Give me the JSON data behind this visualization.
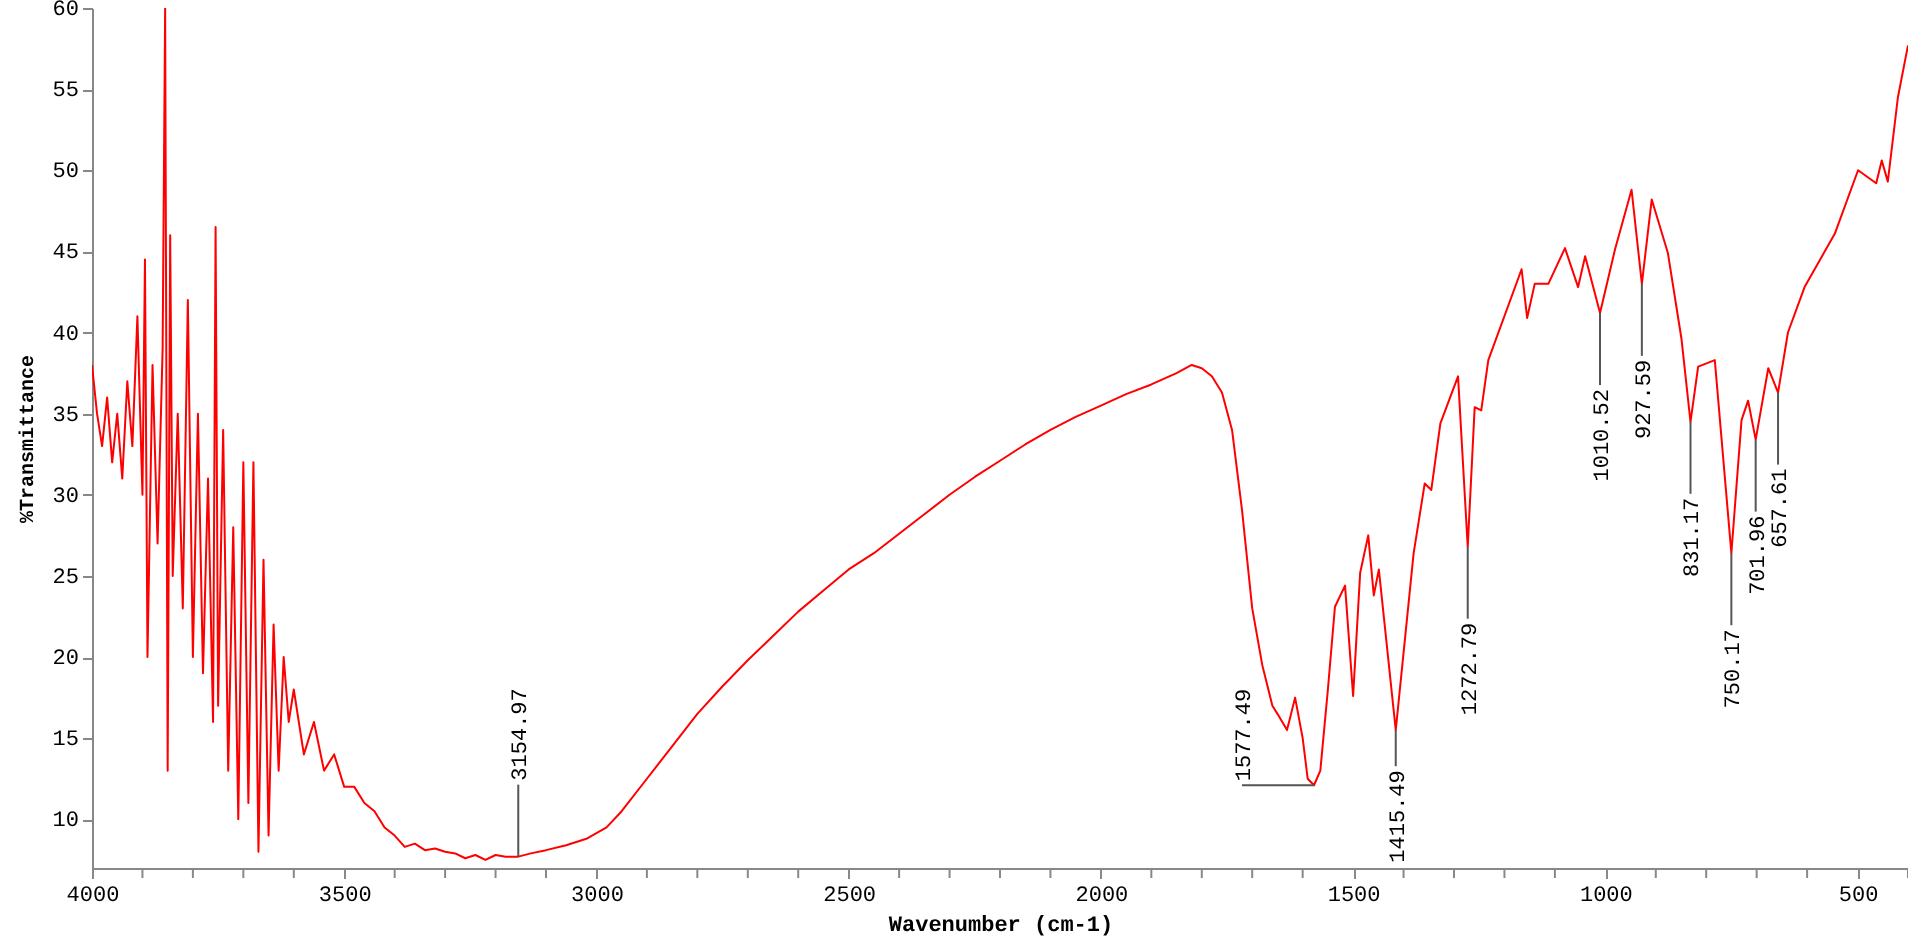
{
  "chart_data": {
    "type": "line",
    "xlabel": "Wavenumber (cm-1)",
    "ylabel": "%Transmittance",
    "xlim": [
      4000,
      400
    ],
    "ylim": [
      7,
      60
    ],
    "xticks": [
      4000,
      {
        "value": 3900,
        "label": null
      },
      {
        "value": 3800,
        "label": null
      },
      {
        "value": 3700,
        "label": null
      },
      {
        "value": 3600,
        "label": null
      },
      3500,
      {
        "value": 3400,
        "label": null
      },
      {
        "value": 3300,
        "label": null
      },
      {
        "value": 3200,
        "label": null
      },
      {
        "value": 3100,
        "label": null
      },
      3000,
      {
        "value": 2900,
        "label": null
      },
      {
        "value": 2800,
        "label": null
      },
      {
        "value": 2700,
        "label": null
      },
      {
        "value": 2600,
        "label": null
      },
      2500,
      {
        "value": 2400,
        "label": null
      },
      {
        "value": 2300,
        "label": null
      },
      {
        "value": 2200,
        "label": null
      },
      {
        "value": 2100,
        "label": null
      },
      2000,
      {
        "value": 1900,
        "label": null
      },
      {
        "value": 1800,
        "label": null
      },
      {
        "value": 1700,
        "label": null
      },
      {
        "value": 1600,
        "label": null
      },
      1500,
      {
        "value": 1400,
        "label": null
      },
      {
        "value": 1300,
        "label": null
      },
      {
        "value": 1200,
        "label": null
      },
      {
        "value": 1100,
        "label": null
      },
      1000,
      {
        "value": 900,
        "label": null
      },
      {
        "value": 800,
        "label": null
      },
      {
        "value": 700,
        "label": null
      },
      {
        "value": 600,
        "label": null
      },
      500,
      {
        "value": 400,
        "label": null
      }
    ],
    "yticks": [
      10,
      15,
      20,
      25,
      30,
      35,
      40,
      45,
      50,
      55,
      60
    ],
    "grid": false,
    "marker": "none",
    "line_style": "solid",
    "x": [
      4000,
      3990,
      3980,
      3970,
      3960,
      3950,
      3940,
      3930,
      3920,
      3910,
      3900,
      3895,
      3890,
      3880,
      3870,
      3860,
      3855,
      3850,
      3845,
      3840,
      3830,
      3820,
      3810,
      3800,
      3790,
      3780,
      3770,
      3760,
      3755,
      3750,
      3740,
      3730,
      3720,
      3710,
      3700,
      3690,
      3680,
      3670,
      3660,
      3650,
      3640,
      3630,
      3620,
      3610,
      3600,
      3580,
      3560,
      3540,
      3520,
      3500,
      3480,
      3460,
      3440,
      3420,
      3400,
      3380,
      3360,
      3340,
      3320,
      3300,
      3280,
      3260,
      3240,
      3220,
      3200,
      3180,
      3154.97,
      3130,
      3100,
      3060,
      3020,
      2980,
      2950,
      2900,
      2850,
      2800,
      2750,
      2700,
      2650,
      2600,
      2550,
      2500,
      2450,
      2400,
      2350,
      2300,
      2250,
      2200,
      2150,
      2100,
      2050,
      2000,
      1950,
      1900,
      1850,
      1820,
      1800,
      1780,
      1760,
      1740,
      1720,
      1700,
      1680,
      1660,
      1650,
      1631,
      1615,
      1600,
      1590,
      1577.49,
      1565,
      1550,
      1536,
      1516,
      1500,
      1486,
      1470,
      1459,
      1449,
      1415.49,
      1380,
      1358,
      1345,
      1327,
      1292,
      1272.79,
      1259,
      1246,
      1232,
      1166,
      1155,
      1140,
      1113,
      1080,
      1054,
      1040,
      1010.52,
      981,
      948,
      927.59,
      908,
      876,
      849,
      831.17,
      816,
      783,
      750.17,
      730,
      717,
      701.96,
      677,
      657.61,
      638,
      605,
      545,
      499,
      463,
      452,
      440,
      420,
      400
    ],
    "series": [
      {
        "color": "#ff0000",
        "values": [
          38,
          35,
          33,
          36,
          32,
          35,
          31,
          37,
          33,
          41,
          30,
          44.5,
          20,
          38,
          27,
          39,
          60,
          13,
          46,
          25,
          35,
          23,
          42,
          20,
          35,
          19,
          31,
          16,
          46.5,
          17,
          34,
          13,
          28,
          10,
          32,
          11,
          32,
          8,
          26,
          9,
          22,
          13,
          20,
          16,
          18,
          14,
          16,
          13,
          14,
          12,
          12,
          11,
          10.5,
          9.5,
          9,
          8.3,
          8.5,
          8.1,
          8.2,
          8,
          7.9,
          7.6,
          7.8,
          7.5,
          7.8,
          7.7,
          7.7,
          7.9,
          8.1,
          8.4,
          8.8,
          9.5,
          10.5,
          12.5,
          14.5,
          16.5,
          18.2,
          19.8,
          21.3,
          22.8,
          24.1,
          25.4,
          26.4,
          27.6,
          28.8,
          30.0,
          31.1,
          32.1,
          33.1,
          34.0,
          34.8,
          35.5,
          36.2,
          36.8,
          37.5,
          38.0,
          37.8,
          37.3,
          36.3,
          34,
          29,
          23,
          19.5,
          17,
          16.5,
          15.5,
          17.5,
          15,
          12.5,
          12.1,
          13,
          18,
          23.1,
          24.4,
          17.6,
          25.2,
          27.5,
          23.8,
          25.4,
          15.5,
          26.4,
          30.7,
          30.3,
          34.4,
          37.3,
          26.8,
          35.4,
          35.2,
          38.3,
          43.9,
          40.9,
          43.0,
          43.0,
          45.2,
          42.8,
          44.7,
          41.2,
          45.1,
          48.8,
          43.0,
          48.2,
          44.9,
          39.6,
          34.5,
          37.9,
          38.3,
          26.4,
          34.6,
          35.8,
          33.4,
          37.8,
          36.3,
          40.0,
          42.8,
          46.1,
          50.0,
          49.2,
          50.6,
          49.3,
          54.5,
          57.7
        ]
      }
    ],
    "annotations": [
      {
        "text": "3154.97",
        "x": 3154.97,
        "y": 7.7
      },
      {
        "text": "1577.49",
        "x": 1577.49,
        "y": 12.1
      },
      {
        "text": "1415.49",
        "x": 1415.49,
        "y": 15.5
      },
      {
        "text": "1272.79",
        "x": 1272.79,
        "y": 26.8
      },
      {
        "text": "1010.52",
        "x": 1010.52,
        "y": 41.2
      },
      {
        "text": "927.59",
        "x": 927.59,
        "y": 43.0
      },
      {
        "text": "831.17",
        "x": 831.17,
        "y": 34.5
      },
      {
        "text": "750.17",
        "x": 750.17,
        "y": 26.4
      },
      {
        "text": "701.96",
        "x": 701.96,
        "y": 33.4
      },
      {
        "text": "657.61",
        "x": 657.61,
        "y": 36.3
      }
    ]
  }
}
